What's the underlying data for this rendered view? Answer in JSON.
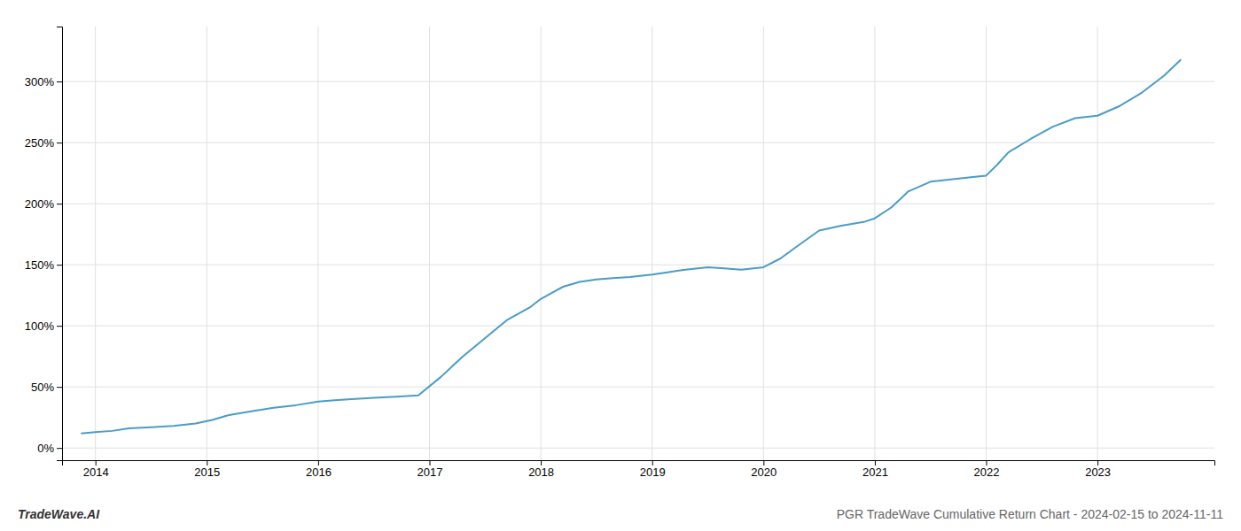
{
  "chart_data": {
    "type": "line",
    "title": "PGR TradeWave Cumulative Return Chart - 2024-02-15 to 2024-11-11",
    "annotations": [
      "TradeWave.AI"
    ],
    "color": "#4a9cc7",
    "grid": true,
    "x": [
      2013.87,
      2014.0,
      2014.15,
      2014.3,
      2014.5,
      2014.7,
      2014.9,
      2015.05,
      2015.2,
      2015.4,
      2015.6,
      2015.8,
      2016.0,
      2016.15,
      2016.3,
      2016.5,
      2016.7,
      2016.9,
      2017.1,
      2017.3,
      2017.5,
      2017.7,
      2017.9,
      2018.0,
      2018.1,
      2018.2,
      2018.35,
      2018.5,
      2018.65,
      2018.8,
      2019.0,
      2019.15,
      2019.3,
      2019.5,
      2019.65,
      2019.8,
      2020.0,
      2020.15,
      2020.3,
      2020.5,
      2020.7,
      2020.9,
      2021.0,
      2021.15,
      2021.3,
      2021.5,
      2021.7,
      2021.9,
      2022.0,
      2022.1,
      2022.2,
      2022.4,
      2022.6,
      2022.8,
      2023.0,
      2023.2,
      2023.4,
      2023.6,
      2023.75
    ],
    "values": [
      12,
      13,
      14,
      16,
      17,
      18,
      20,
      23,
      27,
      30,
      33,
      35,
      38,
      39,
      40,
      41,
      42,
      43,
      58,
      75,
      90,
      105,
      115,
      122,
      127,
      132,
      136,
      138,
      139,
      140,
      142,
      144,
      146,
      148,
      147,
      146,
      148,
      155,
      165,
      178,
      182,
      185,
      188,
      197,
      210,
      218,
      220,
      222,
      223,
      232,
      242,
      253,
      263,
      270,
      272,
      280,
      291,
      305,
      318
    ],
    "xlim": [
      2013.7,
      2024.05
    ],
    "xticks": [
      2014,
      2015,
      2016,
      2017,
      2018,
      2019,
      2020,
      2021,
      2022,
      2023
    ],
    "ylim": [
      -10,
      345
    ],
    "yticks": [
      {
        "value": 0,
        "label": "0%"
      },
      {
        "value": 50,
        "label": "50%"
      },
      {
        "value": 100,
        "label": "100%"
      },
      {
        "value": 150,
        "label": "150%"
      },
      {
        "value": 200,
        "label": "200%"
      },
      {
        "value": 250,
        "label": "250%"
      },
      {
        "value": 300,
        "label": "300%"
      }
    ]
  }
}
